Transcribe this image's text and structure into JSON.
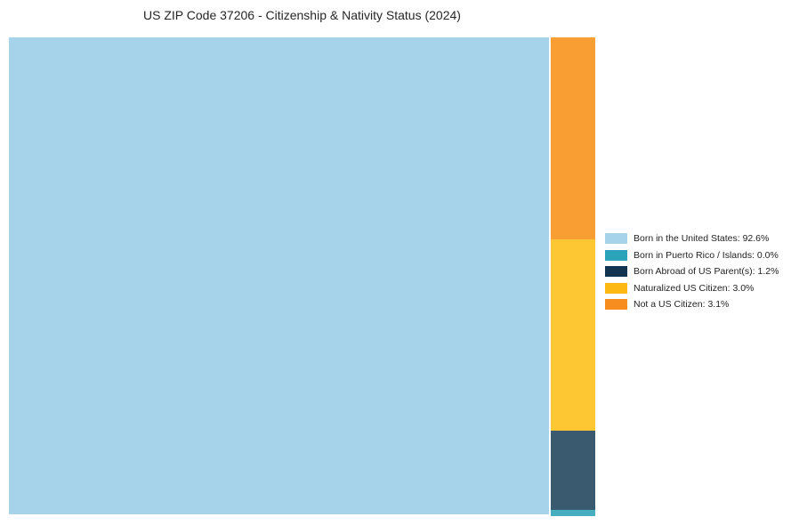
{
  "chart_data": {
    "type": "treemap",
    "title": "US ZIP Code 37206 - Citizenship & Nativity Status (2024)",
    "categories": [
      "Born in the United States",
      "Born in Puerto Rico / Islands",
      "Born Abroad of US Parent(s)",
      "Naturalized US Citizen",
      "Not a US Citizen"
    ],
    "values": [
      92.6,
      0.0,
      1.2,
      3.0,
      3.1
    ],
    "unit": "%",
    "block_colors": [
      "#a6d3ea",
      "#47aec0",
      "#3a5a6f",
      "#fdc733",
      "#f99e33"
    ],
    "legend_colors": [
      "#a6d3ea",
      "#2aa3bb",
      "#113450",
      "#fdb813",
      "#f78d1e"
    ],
    "legend_position": "right",
    "grid": false,
    "layout_hint": "single large left tile for Born in the United States; narrow right column stacked top-to-bottom: Not a US Citizen, Naturalized US Citizen, Born Abroad of US Parent(s), Born in Puerto Rico / Islands"
  },
  "legend": {
    "items": [
      {
        "label": "Born in the United States: 92.6%"
      },
      {
        "label": "Born in Puerto Rico / Islands: 0.0%"
      },
      {
        "label": "Born Abroad of US Parent(s): 1.2%"
      },
      {
        "label": "Naturalized US Citizen: 3.0%"
      },
      {
        "label": "Not a US Citizen: 3.1%"
      }
    ]
  }
}
